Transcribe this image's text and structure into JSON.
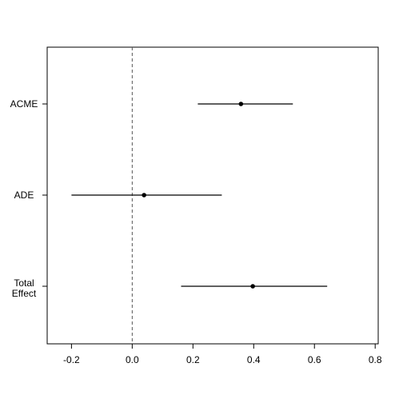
{
  "chart_data": {
    "type": "interval",
    "categories": [
      "ACME",
      "ADE",
      "Total\nEffect"
    ],
    "values": [
      0.358,
      0.039,
      0.397
    ],
    "lower": [
      0.216,
      -0.2,
      0.161
    ],
    "upper": [
      0.529,
      0.295,
      0.642
    ],
    "color": "#000000",
    "reference_line": 0,
    "xlim": [
      -0.28,
      0.81
    ],
    "xticks": [
      -0.2,
      {
        "value": 0,
        "label": "0.0"
      },
      0.2,
      0.4,
      0.6,
      0.8
    ]
  }
}
